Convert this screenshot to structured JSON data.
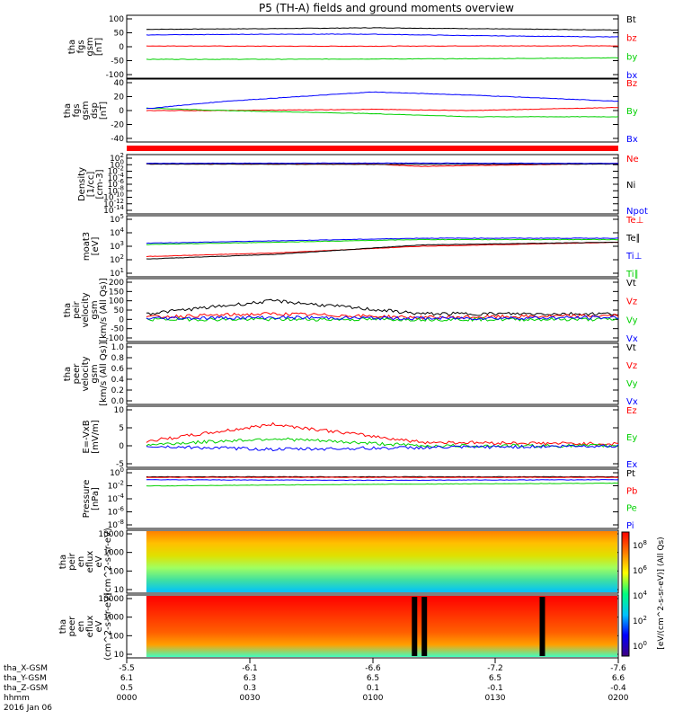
{
  "title": "P5 (TH-A) fields and ground moments overview",
  "colors": {
    "black": "#000000",
    "red": "#ff0000",
    "green": "#00d000",
    "blue": "#0000ff"
  },
  "time_axis": {
    "rows": [
      {
        "label": "tha_X-GSM",
        "values": [
          "-5.5",
          "-6.1",
          "-6.6",
          "-7.2",
          "-7.6"
        ]
      },
      {
        "label": "tha_Y-GSM",
        "values": [
          "6.1",
          "6.3",
          "6.5",
          "6.5",
          "6.6"
        ]
      },
      {
        "label": "tha_Z-GSM",
        "values": [
          "0.5",
          "0.3",
          "0.1",
          "-0.1",
          "-0.4"
        ]
      },
      {
        "label": "hhmm",
        "values": [
          "0000",
          "0030",
          "0100",
          "0130",
          "0200"
        ]
      }
    ],
    "date": "2016 Jan 06"
  },
  "chart_data": [
    {
      "type": "line",
      "ylabel": [
        "tha",
        "fgs",
        "gsm",
        "[nT]"
      ],
      "yticks": [
        "100",
        "50",
        "0",
        "-50",
        "-100"
      ],
      "ylim": [
        -100,
        100
      ],
      "series": [
        {
          "name": "Bt",
          "color": "#000000",
          "x": [
            0.0,
            0.3,
            0.5,
            0.7,
            1.0
          ],
          "y": [
            62,
            65,
            68,
            65,
            60
          ]
        },
        {
          "name": "bz",
          "color": "#ff0000",
          "x": [
            0.0,
            0.3,
            0.5,
            0.7,
            1.0
          ],
          "y": [
            3,
            2,
            2,
            3,
            3
          ]
        },
        {
          "name": "by",
          "color": "#00d000",
          "x": [
            0.0,
            0.3,
            0.5,
            0.7,
            1.0
          ],
          "y": [
            -45,
            -45,
            -44,
            -43,
            -40
          ]
        },
        {
          "name": "bx",
          "color": "#0000ff",
          "x": [
            0.0,
            0.3,
            0.5,
            0.7,
            1.0
          ],
          "y": [
            42,
            45,
            45,
            40,
            35
          ]
        }
      ]
    },
    {
      "type": "line",
      "ylabel": [
        "tha",
        "fgs",
        "gsm",
        "dsp",
        "[nT]"
      ],
      "yticks": [
        "40",
        "20",
        "0",
        "-20",
        "-40"
      ],
      "ylim": [
        -50,
        40
      ],
      "series": [
        {
          "name": "Bz",
          "color": "#ff0000",
          "x": [
            0.0,
            0.2,
            0.5,
            0.7,
            1.0
          ],
          "y": [
            -5,
            -5,
            -3,
            -5,
            0
          ]
        },
        {
          "name": "By",
          "color": "#00d000",
          "x": [
            0.0,
            0.2,
            0.5,
            0.7,
            1.0
          ],
          "y": [
            0,
            -5,
            -10,
            -15,
            -15
          ]
        },
        {
          "name": "Bx",
          "color": "#0000ff",
          "x": [
            0.0,
            0.2,
            0.5,
            0.7,
            1.0
          ],
          "y": [
            -5,
            10,
            25,
            20,
            10
          ]
        }
      ]
    },
    {
      "type": "line",
      "ylabel": [
        "Density",
        "[1/cc]",
        "[cm-3]"
      ],
      "yticks": [
        "10^2",
        "10^0",
        "10^-2",
        "10^-4",
        "10^-6",
        "10^-8",
        "10^-10",
        "10^-12",
        "10^-14"
      ],
      "ylim": [
        -14,
        2
      ],
      "series": [
        {
          "name": "Ne",
          "color": "#ff0000",
          "x": [
            0.0,
            0.5,
            0.6,
            1.0
          ],
          "y": [
            0.3,
            0.2,
            -0.5,
            0.4
          ]
        },
        {
          "name": "Ni",
          "color": "#000000",
          "x": [
            0.0,
            0.5,
            1.0
          ],
          "y": [
            0.2,
            0.1,
            0.2
          ]
        },
        {
          "name": "Npot",
          "color": "#0000ff",
          "x": [
            0.0,
            0.5,
            1.0
          ],
          "y": [
            0.4,
            0.5,
            0.4
          ]
        }
      ]
    },
    {
      "type": "line",
      "ylabel": [
        "moat3",
        "[eV]"
      ],
      "yticks": [
        "10^5",
        "10^4",
        "10^3",
        "10^2",
        "10^1"
      ],
      "ylim": [
        1,
        5
      ],
      "series": [
        {
          "name": "Te⊥",
          "color": "#ff0000",
          "x": [
            0.0,
            0.3,
            0.6,
            1.0
          ],
          "y": [
            2.2,
            2.5,
            3.0,
            3.3
          ]
        },
        {
          "name": "Te∥",
          "color": "#000000",
          "x": [
            0.0,
            0.3,
            0.6,
            1.0
          ],
          "y": [
            2.0,
            2.4,
            3.1,
            3.3
          ]
        },
        {
          "name": "Ti⊥",
          "color": "#0000ff",
          "x": [
            0.0,
            0.3,
            0.6,
            1.0
          ],
          "y": [
            3.2,
            3.4,
            3.6,
            3.6
          ]
        },
        {
          "name": "Ti∥",
          "color": "#00d000",
          "x": [
            0.0,
            0.3,
            0.6,
            1.0
          ],
          "y": [
            3.1,
            3.3,
            3.5,
            3.5
          ]
        }
      ]
    },
    {
      "type": "line",
      "ylabel": [
        "tha",
        "peir",
        "velocity",
        "gsm",
        "[km/s (All Qs)]"
      ],
      "yticks": [
        "200",
        "150",
        "100",
        "50",
        "0",
        "-50",
        "-100"
      ],
      "ylim": [
        -100,
        200
      ],
      "series": [
        {
          "name": "Vt",
          "color": "#000000",
          "x": [
            0.0,
            0.3,
            0.6,
            1.0
          ],
          "y": [
            20,
            100,
            30,
            30
          ]
        },
        {
          "name": "Vz",
          "color": "#ff0000",
          "x": [
            0.0,
            0.3,
            0.6,
            1.0
          ],
          "y": [
            10,
            30,
            10,
            20
          ]
        },
        {
          "name": "Vy",
          "color": "#00d000",
          "x": [
            0.0,
            0.3,
            0.6,
            1.0
          ],
          "y": [
            0,
            0,
            0,
            0
          ]
        },
        {
          "name": "Vx",
          "color": "#0000ff",
          "x": [
            0.0,
            0.3,
            0.6,
            1.0
          ],
          "y": [
            5,
            10,
            5,
            10
          ]
        }
      ]
    },
    {
      "type": "line",
      "ylabel": [
        "tha",
        "peer",
        "velocity",
        "gsm",
        "[km/s (All Qs)]"
      ],
      "yticks": [
        "1.0",
        "0.8",
        "0.6",
        "0.4",
        "0.2",
        "0.0"
      ],
      "ylim": [
        0,
        1
      ],
      "series": [
        {
          "name": "Vt",
          "color": "#000000",
          "x": [],
          "y": []
        },
        {
          "name": "Vz",
          "color": "#ff0000",
          "x": [],
          "y": []
        },
        {
          "name": "Vy",
          "color": "#00d000",
          "x": [],
          "y": []
        },
        {
          "name": "Vx",
          "color": "#0000ff",
          "x": [],
          "y": []
        }
      ]
    },
    {
      "type": "line",
      "ylabel": [
        "E=-VxB",
        "[mV/m]"
      ],
      "yticks": [
        "10",
        "5",
        "0",
        "-5"
      ],
      "ylim": [
        -5,
        10
      ],
      "series": [
        {
          "name": "Ez",
          "color": "#ff0000",
          "x": [
            0.0,
            0.3,
            0.6,
            1.0
          ],
          "y": [
            0.5,
            6,
            1,
            0.5
          ]
        },
        {
          "name": "Ey",
          "color": "#00d000",
          "x": [
            0.0,
            0.3,
            0.6,
            1.0
          ],
          "y": [
            0,
            2,
            0,
            0
          ]
        },
        {
          "name": "Ex",
          "color": "#0000ff",
          "x": [
            0.0,
            0.3,
            0.6,
            1.0
          ],
          "y": [
            0,
            -1,
            -0.5,
            0
          ]
        }
      ]
    },
    {
      "type": "line",
      "ylabel": [
        "Pressure",
        "[nPa]"
      ],
      "yticks": [
        "10^0",
        "10^-2",
        "10^-4",
        "10^-6",
        "10^-8"
      ],
      "ylim": [
        -8,
        1
      ],
      "series": [
        {
          "name": "Pt",
          "color": "#000000",
          "x": [
            0.0,
            0.5,
            1.0
          ],
          "y": [
            0.3,
            0.3,
            0.3
          ]
        },
        {
          "name": "Pb",
          "color": "#ff0000",
          "x": [
            0.0,
            0.5,
            1.0
          ],
          "y": [
            0.2,
            0.2,
            0.2
          ]
        },
        {
          "name": "Pe",
          "color": "#00d000",
          "x": [
            0.0,
            0.5,
            1.0
          ],
          "y": [
            -1.3,
            -1.0,
            -0.8
          ]
        },
        {
          "name": "Pi",
          "color": "#0000ff",
          "x": [
            0.0,
            0.5,
            1.0
          ],
          "y": [
            -0.2,
            -0.3,
            -0.2
          ]
        }
      ]
    },
    {
      "type": "heatmap",
      "ylabel": [
        "tha",
        "peir",
        "en",
        "eflux",
        "eV",
        "(cm^2-s-sr-eV)"
      ],
      "yticks": [
        "10000",
        "1000",
        "100",
        "10"
      ]
    },
    {
      "type": "heatmap",
      "ylabel": [
        "tha",
        "peer",
        "en",
        "eflux",
        "eV",
        "(cm^2-s-sr-eV)"
      ],
      "yticks": [
        "10000",
        "1000",
        "100",
        "10"
      ]
    }
  ],
  "colorbar": {
    "label": "[eV/(cm^2-s-sr-eV)] (All Qs)",
    "ticks": [
      "10^8",
      "10^6",
      "10^4",
      "10^2",
      "10^0"
    ]
  }
}
